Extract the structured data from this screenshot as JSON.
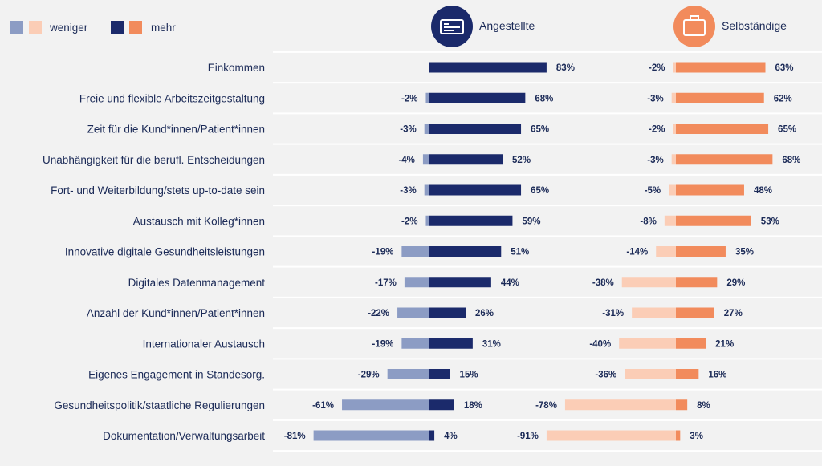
{
  "colors": {
    "angestellte_more": "#1b2a6b",
    "angestellte_less": "#8c9cc4",
    "selbst_more": "#f28b5c",
    "selbst_less": "#fbcdb6",
    "text": "#1b2a57",
    "grid": "#ffffff"
  },
  "legend": {
    "less_label": "weniger",
    "more_label": "mehr"
  },
  "header": {
    "angestellte": {
      "label": "Angestellte",
      "icon": "id-card-icon"
    },
    "selbststaendige": {
      "label": "Selbständige",
      "icon": "briefcase-icon"
    }
  },
  "chart_data": {
    "type": "bar",
    "orientation": "horizontal-diverging",
    "categories": [
      "Einkommen",
      "Freie und flexible Arbeitszeitgestaltung",
      "Zeit für die Kund*innen/Patient*innen",
      "Unabhängigkeit für die berufl. Entscheidungen",
      "Fort- und Weiterbildung/stets up-to-date sein",
      "Austausch mit Kolleg*innen",
      "Innovative digitale Gesundheitsleistungen",
      "Digitales Datenmanagement",
      "Anzahl der Kund*innen/Patient*innen",
      "Internationaler Austausch",
      "Eigenes Engagement in Standesorg.",
      "Gesundheitspolitik/staatliche Regulierungen",
      "Dokumentation/Verwaltungsarbeit"
    ],
    "groups": [
      {
        "name": "Angestellte",
        "less": [
          null,
          -2,
          -3,
          -4,
          -3,
          -2,
          -19,
          -17,
          -22,
          -19,
          -29,
          -61,
          -81
        ],
        "more": [
          83,
          68,
          65,
          52,
          65,
          59,
          51,
          44,
          26,
          31,
          15,
          18,
          4
        ]
      },
      {
        "name": "Selbständige",
        "less": [
          -2,
          -3,
          -2,
          -3,
          -5,
          -8,
          -14,
          -38,
          -31,
          -40,
          -36,
          -78,
          -91
        ],
        "more": [
          63,
          62,
          65,
          68,
          48,
          53,
          35,
          29,
          27,
          21,
          16,
          8,
          3
        ]
      }
    ],
    "unit": "%"
  }
}
